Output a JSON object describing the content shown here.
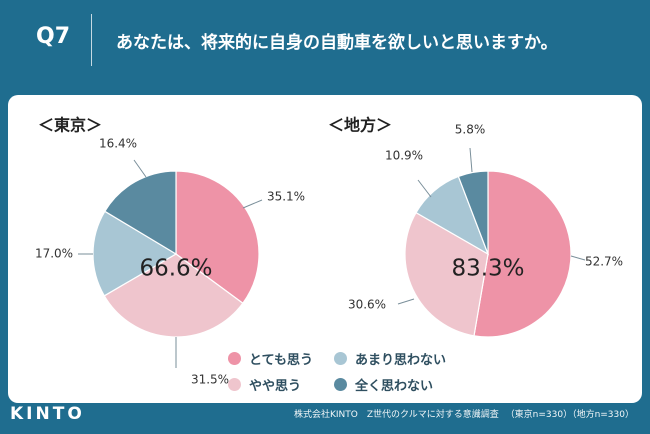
{
  "header": {
    "qnum": "Q7",
    "question": "あなたは、将来的に自身の自動車を欲しいと思いますか。"
  },
  "colors": {
    "background": "#1f6d8f",
    "card": "#ffffff",
    "series": [
      "#ee93a7",
      "#efc5cd",
      "#a8c6d4",
      "#5a8aa0"
    ]
  },
  "chart_data": [
    {
      "type": "pie",
      "title": "＜東京＞",
      "labels": [
        "とても思う",
        "やや思う",
        "あまり思わない",
        "全く思わない"
      ],
      "values": [
        35.1,
        31.5,
        17.0,
        16.4
      ],
      "value_labels": [
        "35.1%",
        "31.5%",
        "17.0%",
        "16.4%"
      ],
      "center_label": "66.6%"
    },
    {
      "type": "pie",
      "title": "＜地方＞",
      "labels": [
        "とても思う",
        "やや思う",
        "あまり思わない",
        "全く思わない"
      ],
      "values": [
        52.7,
        30.6,
        10.9,
        5.8
      ],
      "value_labels": [
        "52.7%",
        "30.6%",
        "10.9%",
        "5.8%"
      ],
      "center_label": "83.3%"
    }
  ],
  "legend": {
    "items": [
      "とても思う",
      "やや思う",
      "あまり思わない",
      "全く思わない"
    ]
  },
  "footer": {
    "logo": "KINTO",
    "source": "株式会社KINTO　Z世代のクルマに対する意識調査",
    "sample": "（東京n=330）（地方n=330）"
  }
}
